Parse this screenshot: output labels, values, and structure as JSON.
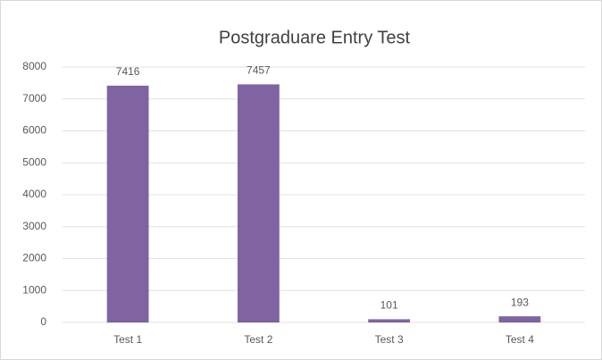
{
  "chart_data": {
    "type": "bar",
    "title": "Postgraduare Entry Test",
    "categories": [
      "Test 1",
      "Test 2",
      "Test 3",
      "Test 4"
    ],
    "values": [
      7416,
      7457,
      101,
      193
    ],
    "color": "#8064a2",
    "ylim": [
      0,
      8000
    ],
    "yticks": [
      0,
      1000,
      2000,
      3000,
      4000,
      5000,
      6000,
      7000,
      8000
    ],
    "grid": true
  }
}
